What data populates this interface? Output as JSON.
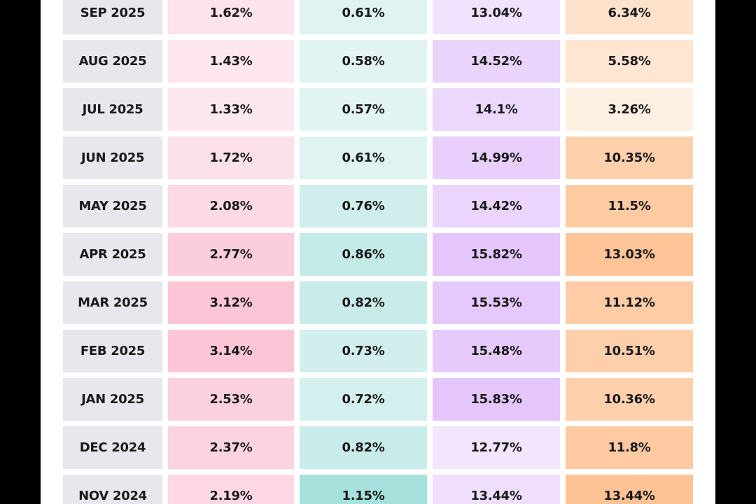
{
  "colors": {
    "month_bg": "#e9e7ee",
    "col1_scale": [
      "#fde8ef",
      "#fcc6d7"
    ],
    "col2_scale": [
      "#e2f4f3",
      "#a7e1de"
    ],
    "col3_scale": [
      "#f2e6fd",
      "#e5c6fc"
    ],
    "col4_scale": [
      "#fff0e4",
      "#ffc294"
    ]
  },
  "chart_data": {
    "type": "table",
    "rows": [
      {
        "month": "SEP 2025",
        "values": [
          "1.62%",
          "0.61%",
          "13.04%",
          "6.34%"
        ]
      },
      {
        "month": "AUG 2025",
        "values": [
          "1.43%",
          "0.58%",
          "14.52%",
          "5.58%"
        ]
      },
      {
        "month": "JUL 2025",
        "values": [
          "1.33%",
          "0.57%",
          "14.1%",
          "3.26%"
        ]
      },
      {
        "month": "JUN 2025",
        "values": [
          "1.72%",
          "0.61%",
          "14.99%",
          "10.35%"
        ]
      },
      {
        "month": "MAY 2025",
        "values": [
          "2.08%",
          "0.76%",
          "14.42%",
          "11.5%"
        ]
      },
      {
        "month": "APR 2025",
        "values": [
          "2.77%",
          "0.86%",
          "15.82%",
          "13.03%"
        ]
      },
      {
        "month": "MAR 2025",
        "values": [
          "3.12%",
          "0.82%",
          "15.53%",
          "11.12%"
        ]
      },
      {
        "month": "FEB 2025",
        "values": [
          "3.14%",
          "0.73%",
          "15.48%",
          "10.51%"
        ]
      },
      {
        "month": "JAN 2025",
        "values": [
          "2.53%",
          "0.72%",
          "15.83%",
          "10.36%"
        ]
      },
      {
        "month": "DEC 2024",
        "values": [
          "2.37%",
          "0.82%",
          "12.77%",
          "11.8%"
        ]
      },
      {
        "month": "NOV 2024",
        "values": [
          "2.19%",
          "1.15%",
          "13.44%",
          "13.44%"
        ]
      }
    ]
  }
}
